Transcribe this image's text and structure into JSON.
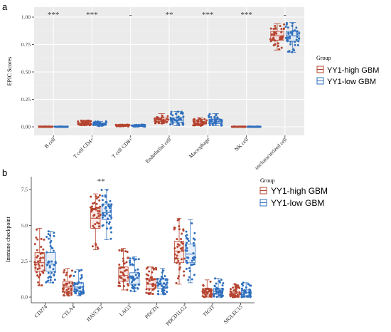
{
  "panels": [
    {
      "panel_label": "a",
      "ylabel": "EPIC Scores",
      "legend_title": "Group",
      "legend": [
        "YY1-high GBM",
        "YY1-low GBM"
      ],
      "colors": {
        "high": "#b5432f",
        "low": "#2f6fbd",
        "bg": "#ebebeb",
        "grid": "#ffffff"
      }
    },
    {
      "panel_label": "b",
      "ylabel": "Immune checkpoint",
      "legend_title": "Group",
      "legend": [
        "YY1-high GBM",
        "YY1-low GBM"
      ],
      "colors": {
        "high": "#b5432f",
        "low": "#2f6fbd",
        "bg": "#ffffff",
        "grid": "#ffffff"
      }
    }
  ],
  "chart_data": [
    {
      "type": "box",
      "ylim": [
        0,
        1.0
      ],
      "yticks": [
        "0.00",
        "0.25",
        "0.50",
        "0.75",
        "1.00"
      ],
      "grid": true,
      "legend_position": "right",
      "categories": [
        "B cell",
        "T cell CD4+",
        "T cell CD8+",
        "Endothelial cell",
        "Macrophage",
        "NK cell",
        "uncharacterized cell"
      ],
      "significance": [
        "***",
        "***",
        "-",
        "**",
        "***",
        "***",
        "-"
      ],
      "series": [
        {
          "name": "YY1-high GBM",
          "stats": [
            [
              0,
              0,
              0,
              0.001,
              0.002
            ],
            [
              0.01,
              0.02,
              0.03,
              0.04,
              0.06
            ],
            [
              0.003,
              0.008,
              0.011,
              0.015,
              0.02
            ],
            [
              0.03,
              0.05,
              0.065,
              0.08,
              0.12
            ],
            [
              0.01,
              0.025,
              0.035,
              0.05,
              0.08
            ],
            [
              0,
              0,
              0,
              0.001,
              0.002
            ],
            [
              0.7,
              0.79,
              0.83,
              0.87,
              0.94
            ]
          ]
        },
        {
          "name": "YY1-low GBM",
          "stats": [
            [
              0,
              0,
              0,
              0.001,
              0.002
            ],
            [
              0.005,
              0.015,
              0.025,
              0.035,
              0.05
            ],
            [
              0.002,
              0.006,
              0.009,
              0.013,
              0.02
            ],
            [
              0.01,
              0.04,
              0.06,
              0.08,
              0.14
            ],
            [
              0.01,
              0.03,
              0.045,
              0.07,
              0.12
            ],
            [
              0,
              0,
              0,
              0.001,
              0.002
            ],
            [
              0.68,
              0.78,
              0.83,
              0.87,
              0.95
            ]
          ]
        }
      ]
    },
    {
      "type": "box",
      "ylim": [
        0,
        8.0
      ],
      "yticks": [
        "0.0",
        "2.5",
        "5.0",
        "7.5"
      ],
      "grid": false,
      "legend_position": "top-right",
      "categories": [
        "CD274",
        "CTLA4",
        "HAVCR2",
        "LAG3",
        "PDCD1",
        "PDCD1LG2",
        "TIGIT",
        "SIGLEC15"
      ],
      "significance": [
        "",
        "",
        "**",
        "",
        "",
        "",
        "",
        ""
      ],
      "series": [
        {
          "name": "YY1-high GBM",
          "stats": [
            [
              0.8,
              1.8,
              2.4,
              3.1,
              4.8
            ],
            [
              0.1,
              0.4,
              0.7,
              1.1,
              2.0
            ],
            [
              3.3,
              4.8,
              5.5,
              6.2,
              7.2
            ],
            [
              0.5,
              1.1,
              1.5,
              2.1,
              3.4
            ],
            [
              0.2,
              0.6,
              0.9,
              1.3,
              2.1
            ],
            [
              0.9,
              2.4,
              3.2,
              3.9,
              5.5
            ],
            [
              0.0,
              0.2,
              0.4,
              0.6,
              1.2
            ],
            [
              0.0,
              0.1,
              0.3,
              0.4,
              0.9
            ]
          ]
        },
        {
          "name": "YY1-low GBM",
          "stats": [
            [
              1.0,
              1.8,
              2.3,
              3.1,
              4.6
            ],
            [
              0.1,
              0.4,
              0.7,
              1.0,
              1.9
            ],
            [
              4.0,
              5.4,
              5.9,
              6.5,
              7.5
            ],
            [
              0.4,
              0.9,
              1.3,
              1.7,
              2.8
            ],
            [
              0.2,
              0.6,
              0.9,
              1.3,
              2.0
            ],
            [
              1.0,
              2.4,
              3.0,
              3.7,
              5.4
            ],
            [
              0.0,
              0.2,
              0.4,
              0.6,
              1.3
            ],
            [
              0.0,
              0.1,
              0.3,
              0.5,
              1.0
            ]
          ]
        }
      ]
    }
  ]
}
